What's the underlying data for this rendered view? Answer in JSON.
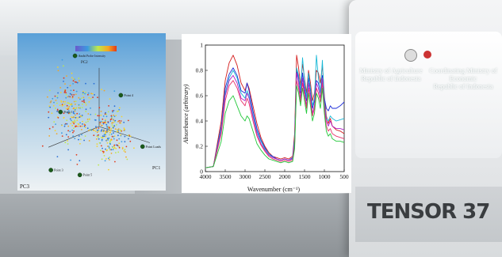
{
  "overlay": {
    "ministry_left": [
      "Ministry of Agriculture",
      "Republic of Indonesia"
    ],
    "ministry_right": [
      "Coordinating Ministry of Economic",
      "Republic of Indonesia"
    ],
    "logo_text": "",
    "brand": "TENSOR 37"
  },
  "chart_data": [
    {
      "type": "scatter",
      "title": "",
      "axes": {
        "pc1": "PC1",
        "pc2": "PC2",
        "pc3": "PC3"
      },
      "colorbar_label": "Probe Intensity",
      "colors": {
        "background_top": "#5aa0d8",
        "background_bottom": "#e8eef2",
        "low": "#2a6fd6",
        "mid": "#bfe84a",
        "high": "#e23a1a"
      },
      "labels": [
        "Anchi",
        "Point 4",
        "Point 1",
        "Point 3",
        "Point 5",
        "Point Loads"
      ],
      "clusters": [
        {
          "center": [
            -0.55,
            0.12,
            0.0
          ],
          "spread": 0.28,
          "points": 260
        },
        {
          "center": [
            0.35,
            0.0,
            0.1
          ],
          "spread": 0.22,
          "points": 230
        }
      ]
    },
    {
      "type": "line",
      "title": "",
      "xlabel": "Wavenumber (cm⁻¹)",
      "ylabel": "Absorbance (arbitrary)",
      "xlim": [
        4000,
        500
      ],
      "ylim": [
        0,
        1.0
      ],
      "xticks": [
        4000,
        3500,
        3000,
        2500,
        2000,
        1500,
        1000,
        500
      ],
      "yticks": [
        0,
        0.2,
        0.4,
        0.6,
        0.8,
        1.0
      ],
      "x": [
        4000,
        3800,
        3600,
        3500,
        3400,
        3300,
        3200,
        3100,
        3000,
        2950,
        2900,
        2800,
        2700,
        2600,
        2500,
        2400,
        2300,
        2200,
        2100,
        2000,
        1900,
        1800,
        1750,
        1700,
        1650,
        1600,
        1550,
        1500,
        1450,
        1400,
        1350,
        1300,
        1250,
        1200,
        1150,
        1100,
        1050,
        1000,
        950,
        900,
        850,
        800,
        700,
        600,
        500
      ],
      "series": [
        {
          "color": "#d41c1c",
          "values": [
            0.03,
            0.04,
            0.4,
            0.72,
            0.86,
            0.92,
            0.84,
            0.7,
            0.64,
            0.7,
            0.66,
            0.52,
            0.38,
            0.27,
            0.2,
            0.15,
            0.12,
            0.11,
            0.1,
            0.11,
            0.1,
            0.12,
            0.3,
            0.92,
            0.82,
            0.68,
            0.85,
            0.74,
            0.62,
            0.8,
            0.7,
            0.56,
            0.62,
            0.8,
            0.78,
            0.7,
            0.84,
            0.6,
            0.44,
            0.38,
            0.42,
            0.36,
            0.33,
            0.32,
            0.3
          ]
        },
        {
          "color": "#1a2ad8",
          "values": [
            0.03,
            0.04,
            0.36,
            0.66,
            0.77,
            0.82,
            0.76,
            0.64,
            0.62,
            0.7,
            0.64,
            0.48,
            0.34,
            0.25,
            0.19,
            0.14,
            0.12,
            0.1,
            0.09,
            0.1,
            0.09,
            0.11,
            0.26,
            0.8,
            0.74,
            0.62,
            0.78,
            0.66,
            0.56,
            0.74,
            0.64,
            0.5,
            0.56,
            0.72,
            0.7,
            0.62,
            0.76,
            0.58,
            0.5,
            0.48,
            0.52,
            0.5,
            0.5,
            0.52,
            0.55
          ]
        },
        {
          "color": "#18b8d6",
          "values": [
            0.03,
            0.04,
            0.34,
            0.62,
            0.74,
            0.8,
            0.74,
            0.62,
            0.58,
            0.64,
            0.6,
            0.45,
            0.32,
            0.24,
            0.18,
            0.14,
            0.11,
            0.1,
            0.09,
            0.1,
            0.09,
            0.1,
            0.24,
            0.82,
            0.76,
            0.64,
            0.9,
            0.72,
            0.58,
            0.78,
            0.66,
            0.52,
            0.58,
            0.92,
            0.74,
            0.62,
            0.88,
            0.55,
            0.42,
            0.4,
            0.44,
            0.42,
            0.4,
            0.41,
            0.42
          ]
        },
        {
          "color": "#b020c8",
          "values": [
            0.03,
            0.04,
            0.32,
            0.6,
            0.72,
            0.76,
            0.7,
            0.58,
            0.56,
            0.62,
            0.58,
            0.43,
            0.3,
            0.22,
            0.17,
            0.13,
            0.11,
            0.1,
            0.09,
            0.1,
            0.09,
            0.1,
            0.22,
            0.78,
            0.7,
            0.58,
            0.74,
            0.62,
            0.52,
            0.7,
            0.6,
            0.46,
            0.52,
            0.7,
            0.66,
            0.58,
            0.74,
            0.52,
            0.4,
            0.36,
            0.4,
            0.36,
            0.34,
            0.34,
            0.33
          ]
        },
        {
          "color": "#e8336a",
          "values": [
            0.03,
            0.04,
            0.3,
            0.56,
            0.68,
            0.72,
            0.66,
            0.56,
            0.52,
            0.58,
            0.54,
            0.4,
            0.28,
            0.21,
            0.16,
            0.12,
            0.1,
            0.09,
            0.08,
            0.09,
            0.08,
            0.09,
            0.2,
            0.72,
            0.66,
            0.55,
            0.7,
            0.6,
            0.5,
            0.66,
            0.56,
            0.44,
            0.5,
            0.66,
            0.62,
            0.55,
            0.7,
            0.5,
            0.36,
            0.32,
            0.34,
            0.3,
            0.28,
            0.27,
            0.26
          ]
        },
        {
          "color": "#22c83a",
          "values": [
            0.03,
            0.04,
            0.24,
            0.46,
            0.56,
            0.6,
            0.52,
            0.44,
            0.4,
            0.44,
            0.42,
            0.32,
            0.22,
            0.17,
            0.13,
            0.1,
            0.09,
            0.08,
            0.07,
            0.08,
            0.07,
            0.08,
            0.18,
            0.68,
            0.62,
            0.52,
            0.66,
            0.56,
            0.46,
            0.62,
            0.52,
            0.4,
            0.46,
            0.62,
            0.58,
            0.5,
            0.66,
            0.46,
            0.32,
            0.28,
            0.3,
            0.26,
            0.24,
            0.24,
            0.23
          ]
        }
      ]
    }
  ]
}
